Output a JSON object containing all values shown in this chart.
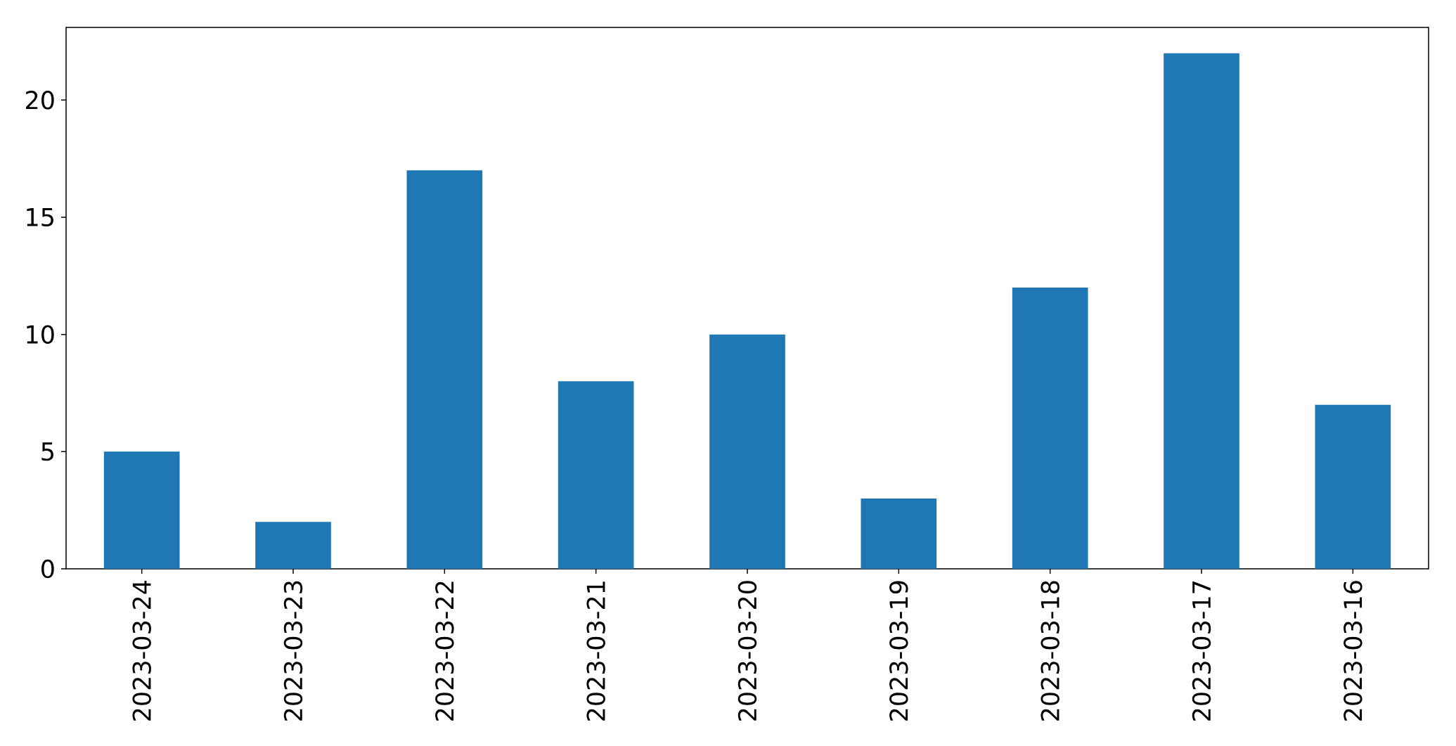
{
  "chart_data": {
    "type": "bar",
    "categories": [
      "2023-03-24",
      "2023-03-23",
      "2023-03-22",
      "2023-03-21",
      "2023-03-20",
      "2023-03-19",
      "2023-03-18",
      "2023-03-17",
      "2023-03-16"
    ],
    "values": [
      5,
      2,
      17,
      8,
      10,
      3,
      12,
      22,
      7
    ],
    "color": "#1f77b4",
    "ylim": [
      0,
      23.1
    ],
    "yticks": [
      0,
      5,
      10,
      15,
      20
    ]
  }
}
